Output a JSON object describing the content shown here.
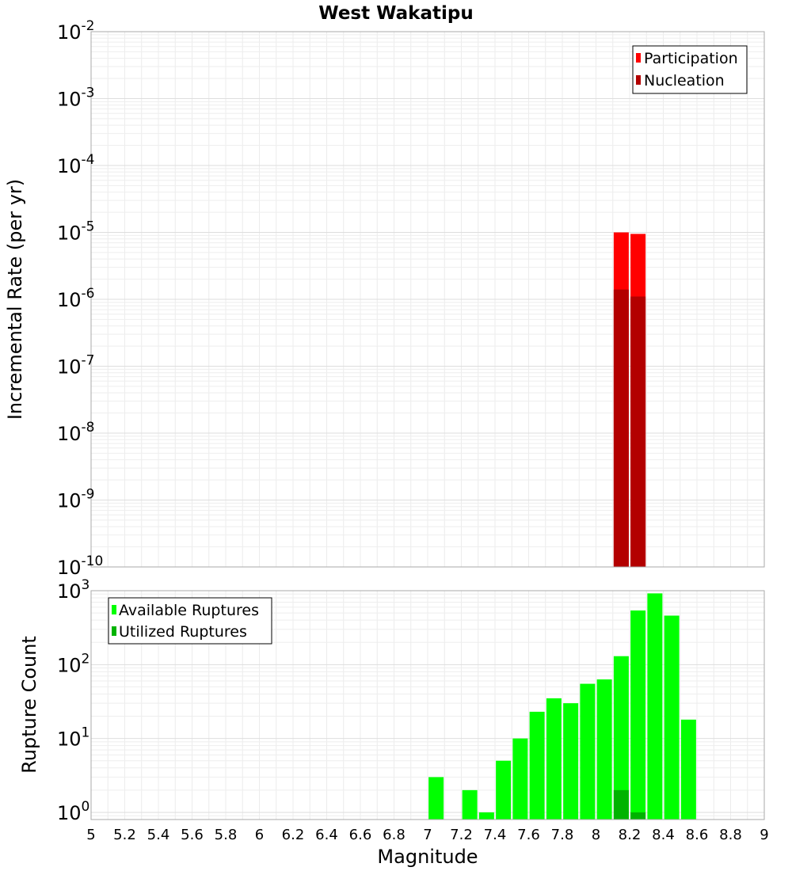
{
  "chart_data": [
    {
      "type": "bar",
      "id": "rates",
      "title": "West Wakatipu",
      "ylabel": "Incremental Rate (per yr)",
      "yscale": "log",
      "ylim": [
        1e-10,
        0.01
      ],
      "xlim": [
        5,
        9
      ],
      "y_ticks": [
        {
          "base": "10",
          "exp": "-10"
        },
        {
          "base": "10",
          "exp": "-9"
        },
        {
          "base": "10",
          "exp": "-8"
        },
        {
          "base": "10",
          "exp": "-7"
        },
        {
          "base": "10",
          "exp": "-6"
        },
        {
          "base": "10",
          "exp": "-5"
        },
        {
          "base": "10",
          "exp": "-4"
        },
        {
          "base": "10",
          "exp": "-3"
        },
        {
          "base": "10",
          "exp": "-2"
        }
      ],
      "legend_position": "top-right",
      "series": [
        {
          "name": "Participation",
          "color": "#ff0000",
          "x": [
            8.15,
            8.25
          ],
          "values": [
            1e-05,
            9.5e-06
          ]
        },
        {
          "name": "Nucleation",
          "color": "#b30000",
          "x": [
            8.15,
            8.25
          ],
          "values": [
            1.4e-06,
            1.1e-06
          ]
        }
      ]
    },
    {
      "type": "bar",
      "id": "counts",
      "ylabel": "Rupture Count",
      "xlabel": "Magnitude",
      "yscale": "log",
      "ylim": [
        0.8,
        1000
      ],
      "xlim": [
        5,
        9
      ],
      "y_ticks": [
        {
          "base": "10",
          "exp": "0"
        },
        {
          "base": "10",
          "exp": "1"
        },
        {
          "base": "10",
          "exp": "2"
        },
        {
          "base": "10",
          "exp": "3"
        }
      ],
      "x_ticks": [
        "5",
        "5.2",
        "5.4",
        "5.6",
        "5.8",
        "6",
        "6.2",
        "6.4",
        "6.6",
        "6.8",
        "7",
        "7.2",
        "7.4",
        "7.6",
        "7.8",
        "8",
        "8.2",
        "8.4",
        "8.6",
        "8.8",
        "9"
      ],
      "legend_position": "top-left",
      "series": [
        {
          "name": "Available Ruptures",
          "color": "#00ff00",
          "x": [
            7.05,
            7.25,
            7.35,
            7.45,
            7.55,
            7.65,
            7.75,
            7.85,
            7.95,
            8.05,
            8.15,
            8.25,
            8.35,
            8.45,
            8.55
          ],
          "values": [
            3,
            2,
            1,
            5,
            10,
            23,
            35,
            30,
            55,
            63,
            130,
            540,
            920,
            460,
            18
          ]
        },
        {
          "name": "Utilized Ruptures",
          "color": "#00b300",
          "x": [
            8.15,
            8.25
          ],
          "values": [
            2,
            1
          ]
        }
      ]
    }
  ]
}
